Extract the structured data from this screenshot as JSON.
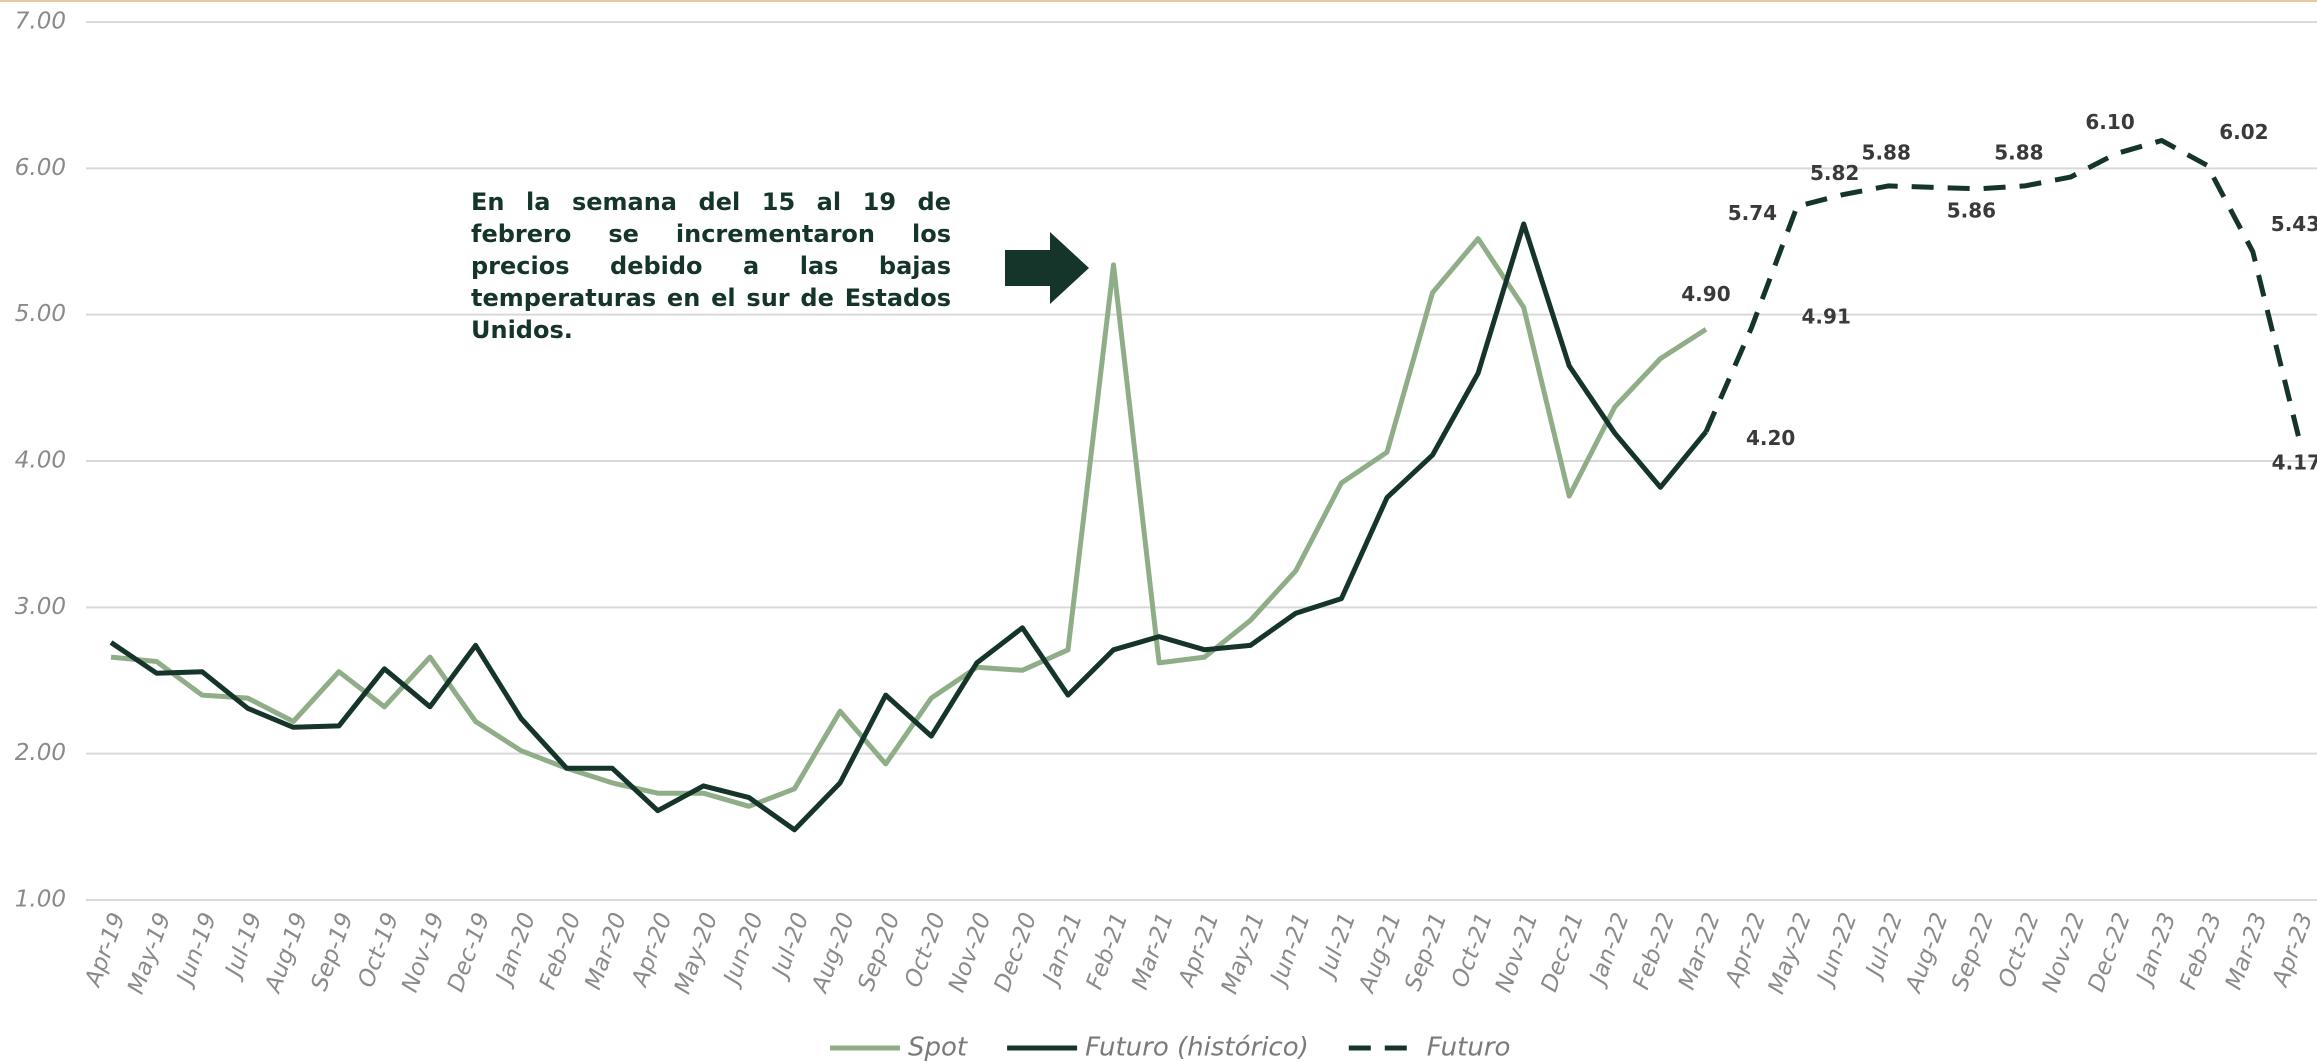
{
  "chart_data": {
    "type": "line",
    "annotation": "En la semana del 15 al 19 de febrero se incrementaron los precios debido a las bajas temperaturas en el sur de Estados Unidos.",
    "categories": [
      "Apr-19",
      "May-19",
      "Jun-19",
      "Jul-19",
      "Aug-19",
      "Sep-19",
      "Oct-19",
      "Nov-19",
      "Dec-19",
      "Jan-20",
      "Feb-20",
      "Mar-20",
      "Apr-20",
      "May-20",
      "Jun-20",
      "Jul-20",
      "Aug-20",
      "Sep-20",
      "Oct-20",
      "Nov-20",
      "Dec-20",
      "Jan-21",
      "Feb-21",
      "Mar-21",
      "Apr-21",
      "May-21",
      "Jun-21",
      "Jul-21",
      "Aug-21",
      "Sep-21",
      "Oct-21",
      "Nov-21",
      "Dec-21",
      "Jan-22",
      "Feb-22",
      "Mar-22",
      "Apr-22",
      "May-22",
      "Jun-22",
      "Jul-22",
      "Aug-22",
      "Sep-22",
      "Oct-22",
      "Nov-22",
      "Dec-22",
      "Jan-23",
      "Feb-23",
      "Mar-23",
      "Apr-23"
    ],
    "ylim": [
      1,
      7
    ],
    "yticks": [
      {
        "value": 1,
        "label": "1.00"
      },
      {
        "value": 2,
        "label": "2.00"
      },
      {
        "value": 3,
        "label": "3.00"
      },
      {
        "value": 4,
        "label": "4.00"
      },
      {
        "value": 5,
        "label": "5.00"
      },
      {
        "value": 6,
        "label": "6.00"
      },
      {
        "value": 7,
        "label": "7.00"
      }
    ],
    "grid": true,
    "legend": "bottom",
    "series": [
      {
        "name": "Spot",
        "color": "#8fae88",
        "dash": false,
        "values": [
          2.66,
          2.63,
          2.4,
          2.38,
          2.22,
          2.56,
          2.32,
          2.66,
          2.22,
          2.02,
          1.9,
          1.8,
          1.73,
          1.73,
          1.64,
          1.76,
          2.29,
          1.93,
          2.38,
          2.59,
          2.57,
          2.71,
          5.34,
          2.62,
          2.66,
          2.91,
          3.25,
          3.85,
          4.06,
          5.15,
          5.52,
          5.05,
          3.76,
          4.37,
          4.7,
          4.9,
          null,
          null,
          null,
          null,
          null,
          null,
          null,
          null,
          null,
          null,
          null,
          null,
          null
        ],
        "value_labels": [
          null,
          null,
          null,
          null,
          null,
          null,
          null,
          null,
          null,
          null,
          null,
          null,
          null,
          null,
          null,
          null,
          null,
          null,
          null,
          null,
          null,
          null,
          null,
          null,
          null,
          null,
          null,
          null,
          null,
          null,
          null,
          null,
          null,
          null,
          null,
          "4.90",
          null,
          null,
          null,
          null,
          null,
          null,
          null,
          null,
          null,
          null,
          null,
          null,
          null
        ]
      },
      {
        "name": "Futuro (histórico)",
        "color": "#15352b",
        "dash": false,
        "values": [
          2.76,
          2.55,
          2.56,
          2.31,
          2.18,
          2.19,
          2.58,
          2.32,
          2.74,
          2.24,
          1.9,
          1.9,
          1.61,
          1.78,
          1.7,
          1.48,
          1.8,
          2.4,
          2.12,
          2.62,
          2.86,
          2.4,
          2.71,
          2.8,
          2.71,
          2.74,
          2.96,
          3.06,
          3.75,
          4.04,
          4.6,
          5.62,
          4.65,
          4.19,
          3.82,
          4.2,
          null,
          null,
          null,
          null,
          null,
          null,
          null,
          null,
          null,
          null,
          null,
          null,
          null
        ],
        "value_labels": [
          null,
          null,
          null,
          null,
          null,
          null,
          null,
          null,
          null,
          null,
          null,
          null,
          null,
          null,
          null,
          null,
          null,
          null,
          null,
          null,
          null,
          null,
          null,
          null,
          null,
          null,
          null,
          null,
          null,
          null,
          null,
          null,
          null,
          null,
          null,
          "4.20",
          null,
          null,
          null,
          null,
          null,
          null,
          null,
          null,
          null,
          null,
          null,
          null,
          null
        ]
      },
      {
        "name": "Futuro",
        "color": "#15352b",
        "dash": true,
        "values": [
          null,
          null,
          null,
          null,
          null,
          null,
          null,
          null,
          null,
          null,
          null,
          null,
          null,
          null,
          null,
          null,
          null,
          null,
          null,
          null,
          null,
          null,
          null,
          null,
          null,
          null,
          null,
          null,
          null,
          null,
          null,
          null,
          null,
          null,
          null,
          4.2,
          4.91,
          5.74,
          5.82,
          5.88,
          5.87,
          5.86,
          5.88,
          5.94,
          6.1,
          6.19,
          6.02,
          5.43,
          4.17
        ],
        "value_labels": [
          null,
          null,
          null,
          null,
          null,
          null,
          null,
          null,
          null,
          null,
          null,
          null,
          null,
          null,
          null,
          null,
          null,
          null,
          null,
          null,
          null,
          null,
          null,
          null,
          null,
          null,
          null,
          null,
          null,
          null,
          null,
          null,
          null,
          null,
          null,
          null,
          "4.91",
          "5.74",
          "5.82",
          "5.88",
          null,
          "5.86",
          "5.88",
          null,
          "6.10",
          null,
          "6.02",
          "5.43",
          "4.17"
        ]
      }
    ]
  }
}
